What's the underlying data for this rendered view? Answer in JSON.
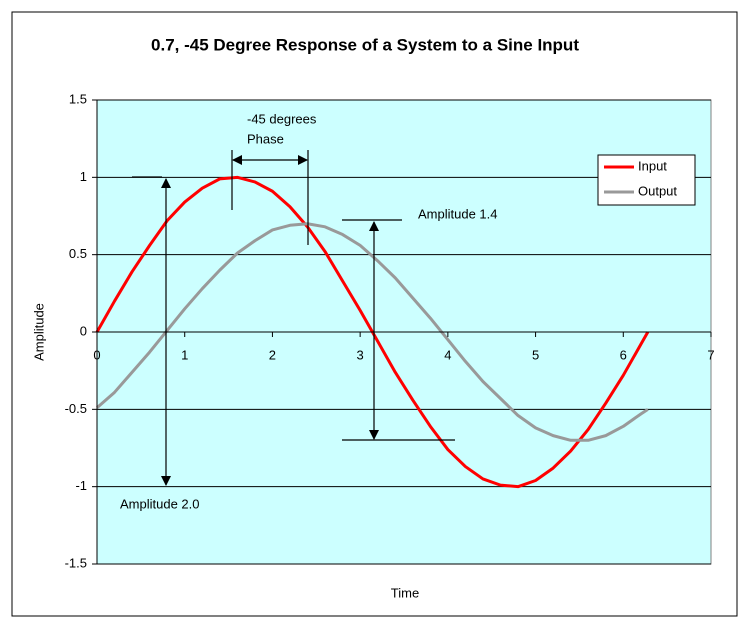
{
  "chart_data": {
    "type": "line",
    "title": "0.7, -45 Degree Response of a System to a Sine Input",
    "x_label": "Time",
    "y_label": "Amplitude",
    "x": [
      0,
      0.2,
      0.4,
      0.6,
      0.8,
      1,
      1.2,
      1.4,
      1.6,
      1.8,
      2,
      2.2,
      2.4,
      2.6,
      2.8,
      3,
      3.2,
      3.4,
      3.6,
      3.8,
      4,
      4.2,
      4.4,
      4.6,
      4.8,
      5,
      5.2,
      5.4,
      5.6,
      5.8,
      6,
      6.2,
      6.28
    ],
    "series": [
      {
        "name": "Input",
        "color": "#ff0000",
        "values": [
          0,
          0.2,
          0.39,
          0.56,
          0.72,
          0.84,
          0.93,
          0.99,
          1.0,
          0.97,
          0.91,
          0.81,
          0.68,
          0.52,
          0.33,
          0.14,
          -0.06,
          -0.26,
          -0.44,
          -0.61,
          -0.76,
          -0.87,
          -0.95,
          -0.99,
          -1.0,
          -0.96,
          -0.88,
          -0.77,
          -0.63,
          -0.46,
          -0.28,
          -0.08,
          0.0
        ]
      },
      {
        "name": "Output",
        "color": "#999999",
        "values": [
          -0.49,
          -0.39,
          -0.26,
          -0.13,
          0.01,
          0.15,
          0.28,
          0.4,
          0.51,
          0.59,
          0.66,
          0.69,
          0.7,
          0.68,
          0.63,
          0.56,
          0.46,
          0.35,
          0.22,
          0.09,
          -0.05,
          -0.19,
          -0.32,
          -0.43,
          -0.54,
          -0.62,
          -0.67,
          -0.7,
          -0.7,
          -0.67,
          -0.61,
          -0.53,
          -0.5
        ]
      }
    ],
    "xlim": [
      0,
      7
    ],
    "xticks": [
      0,
      1,
      2,
      3,
      4,
      5,
      6,
      7
    ],
    "ylim": [
      -1.5,
      1.5
    ],
    "yticks": [
      -1.5,
      -1,
      -0.5,
      0,
      0.5,
      1,
      1.5
    ],
    "grid": true,
    "legend": "upper right",
    "annotations": [
      "-45 degrees",
      "Phase",
      "Amplitude 1.4",
      "Amplitude 2.0"
    ]
  }
}
